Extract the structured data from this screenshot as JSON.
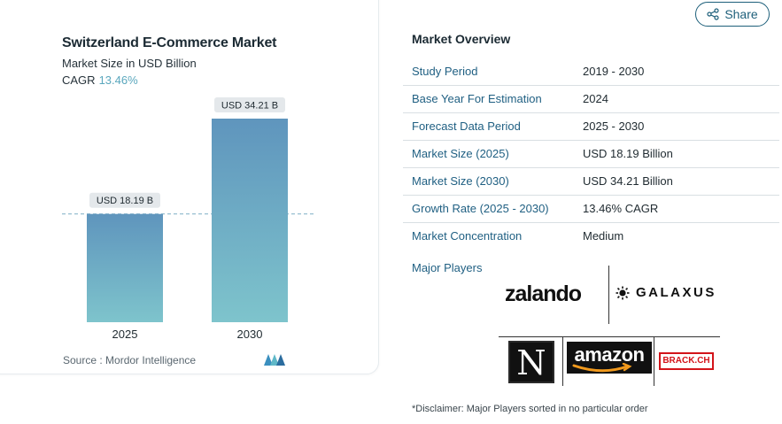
{
  "chart_data": {
    "type": "bar",
    "title": "Switzerland E-Commerce Market",
    "subtitle": "Market Size in USD Billion",
    "cagr_label": "CAGR",
    "cagr_value": "13.46%",
    "categories": [
      "2025",
      "2030"
    ],
    "values": [
      18.19,
      34.21
    ],
    "data_labels": [
      "USD 18.19 B",
      "USD 34.21 B"
    ],
    "ylim": [
      0,
      34.21
    ],
    "reference_line": 18.19,
    "colors": {
      "bar_top": "#5f95bd",
      "bar_bottom": "#7ec4cc",
      "label_bg": "#e4e8eb",
      "ref_line": "#8cb8cc"
    }
  },
  "source": "Source :  Mordor Intelligence",
  "share": {
    "label": "Share",
    "icon": "share-icon"
  },
  "overview": {
    "title": "Market Overview",
    "rows": [
      {
        "label": "Study Period",
        "value": "2019 - 2030"
      },
      {
        "label": "Base Year For Estimation",
        "value": "2024"
      },
      {
        "label": "Forecast Data Period",
        "value": "2025 - 2030"
      },
      {
        "label": "Market Size (2025)",
        "value": "USD 18.19 Billion"
      },
      {
        "label": "Market Size (2030)",
        "value": "USD 34.21 Billion"
      },
      {
        "label": "Growth Rate (2025 - 2030)",
        "value": "13.46% CAGR"
      },
      {
        "label": "Market Concentration",
        "value": "Medium"
      }
    ],
    "players_label": "Major Players"
  },
  "players": {
    "zalando": "zalando",
    "galaxus": "GALAXUS",
    "nespresso": "N",
    "amazon": "amazon",
    "brack": "BRACK.CH"
  },
  "disclaimer": "*Disclaimer: Major Players sorted in no particular order",
  "colors": {
    "accent": "#1f5f82",
    "share_border": "#1d5f7a"
  }
}
